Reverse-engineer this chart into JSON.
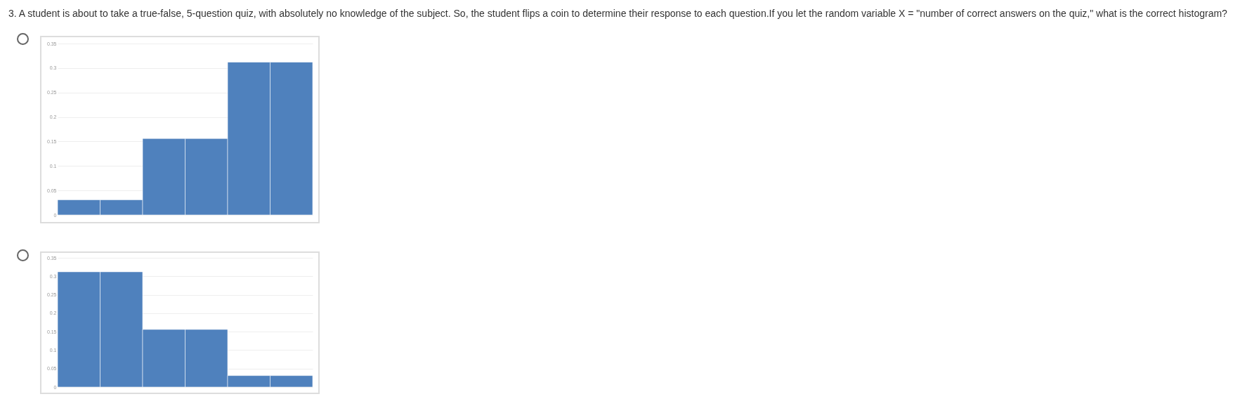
{
  "chart_data": [
    {
      "type": "bar",
      "title": "3. A student is about to take a true-false, 5-question quiz, with absolutely no knowledge of the subject. So, the student flips a coin to determine their response to each question.If you let the random variable X = \"number of correct answers on the quiz,\" what is the correct histogram?",
      "categories": [
        null,
        null,
        null,
        null,
        null,
        null
      ],
      "values": [
        0.031,
        0.031,
        0.156,
        0.156,
        0.312,
        0.312
      ],
      "color": "#4f81bd",
      "ylim": [
        0,
        0.35
      ],
      "yticks": [
        0,
        0.05,
        0.1,
        0.15,
        0.2,
        0.25,
        0.3,
        0.35
      ],
      "grid": "y",
      "tick_labels": "y"
    },
    {
      "type": "bar",
      "categories": [
        null,
        null,
        null,
        null,
        null,
        null
      ],
      "values": [
        0.312,
        0.312,
        0.156,
        0.156,
        0.031,
        0.031
      ],
      "color": "#4f81bd",
      "ylim": [
        0,
        0.35
      ],
      "yticks": [
        0,
        0.05,
        0.1,
        0.15,
        0.2,
        0.25,
        0.3,
        0.35
      ],
      "grid": "y",
      "tick_labels": "y"
    }
  ]
}
